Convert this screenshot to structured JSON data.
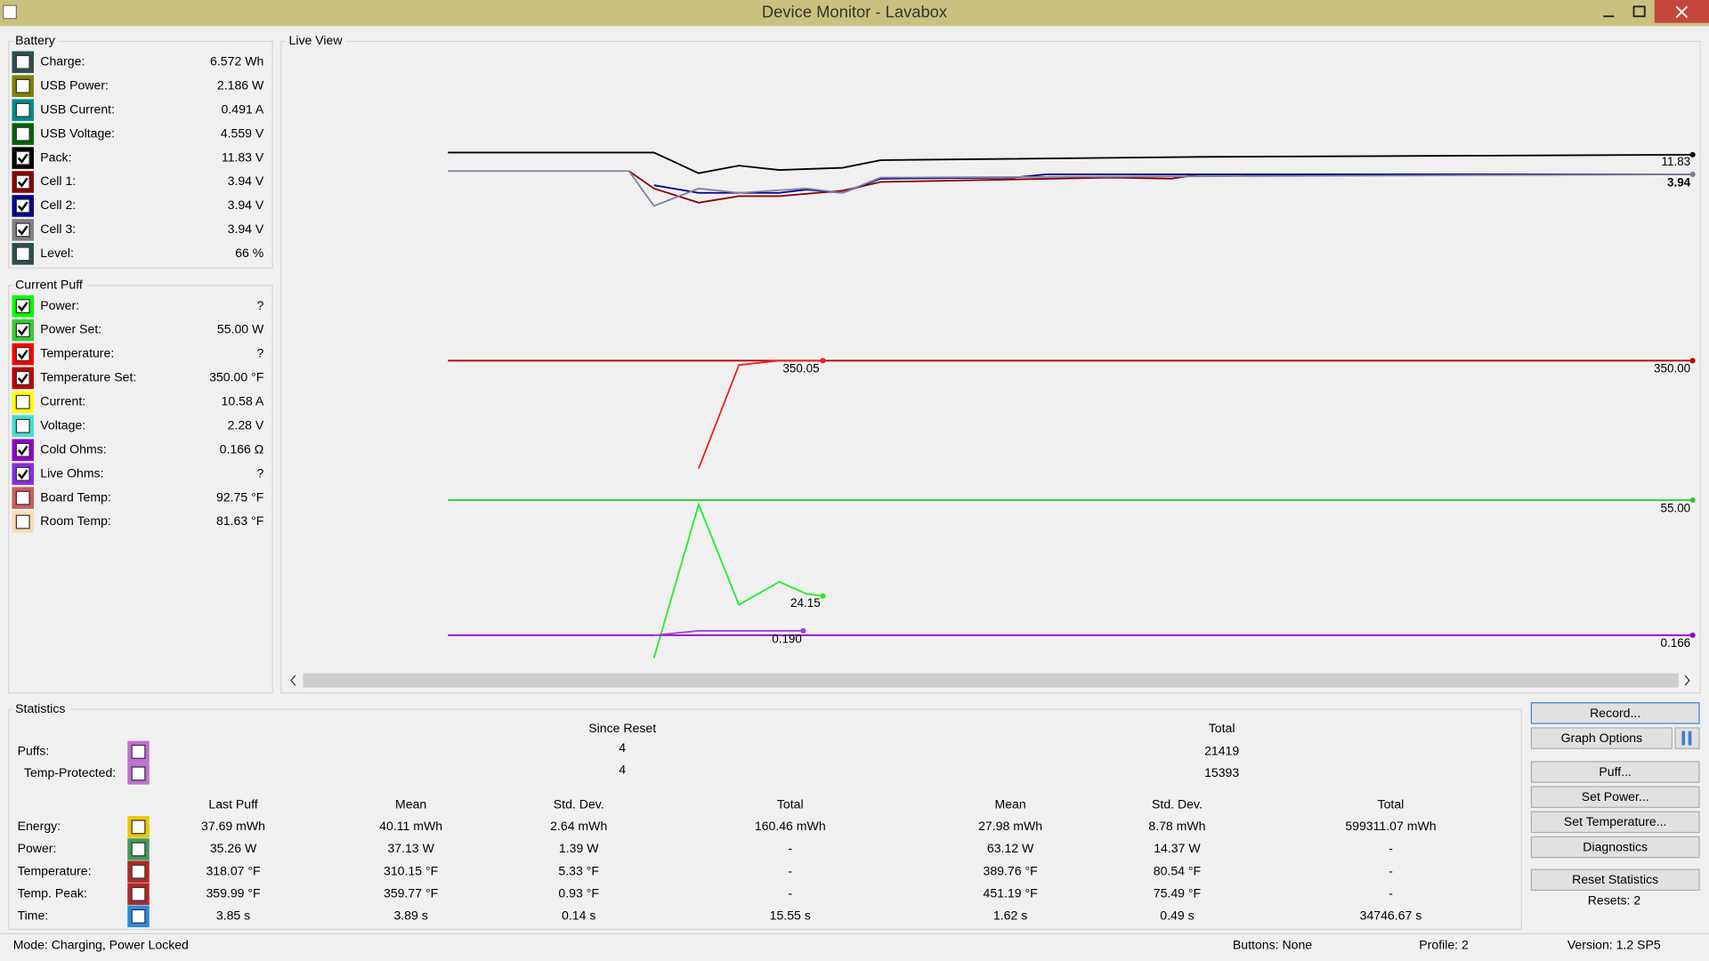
{
  "window": {
    "title": "Device Monitor - Lavabox"
  },
  "battery": {
    "title": "Battery",
    "rows": [
      {
        "label": "Charge:",
        "value": "6.572 Wh",
        "checked": false,
        "color": "#2f4f4f"
      },
      {
        "label": "USB Power:",
        "value": "2.186 W",
        "checked": false,
        "color": "#808000"
      },
      {
        "label": "USB Current:",
        "value": "0.491 A",
        "checked": false,
        "color": "#008b8b"
      },
      {
        "label": "USB Voltage:",
        "value": "4.559 V",
        "checked": false,
        "color": "#006400"
      },
      {
        "label": "Pack:",
        "value": "11.83 V",
        "checked": true,
        "color": "#000000"
      },
      {
        "label": "Cell 1:",
        "value": "3.94 V",
        "checked": true,
        "color": "#8b0000"
      },
      {
        "label": "Cell 2:",
        "value": "3.94 V",
        "checked": true,
        "color": "#00008b"
      },
      {
        "label": "Cell 3:",
        "value": "3.94 V",
        "checked": true,
        "color": "#808080"
      },
      {
        "label": "Level:",
        "value": "66 %",
        "checked": false,
        "color": "#2f4f4f"
      }
    ]
  },
  "current_puff": {
    "title": "Current Puff",
    "rows": [
      {
        "label": "Power:",
        "value": "?",
        "checked": true,
        "color": "#00ff00"
      },
      {
        "label": "Power Set:",
        "value": "55.00 W",
        "checked": true,
        "color": "#32cd32"
      },
      {
        "label": "Temperature:",
        "value": "?",
        "checked": true,
        "color": "#ff0000"
      },
      {
        "label": "Temperature Set:",
        "value": "350.00 °F",
        "checked": true,
        "color": "#c00000"
      },
      {
        "label": "Current:",
        "value": "10.58 A",
        "checked": false,
        "color": "#ffff00"
      },
      {
        "label": "Voltage:",
        "value": "2.28 V",
        "checked": false,
        "color": "#40e0d0"
      },
      {
        "label": "Cold Ohms:",
        "value": "0.166 Ω",
        "checked": true,
        "color": "#9400d3"
      },
      {
        "label": "Live Ohms:",
        "value": "?",
        "checked": true,
        "color": "#8a2be2"
      },
      {
        "label": "Board Temp:",
        "value": "92.75 °F",
        "checked": false,
        "color": "#cd5c5c"
      },
      {
        "label": "Room Temp:",
        "value": "81.63 °F",
        "checked": false,
        "color": "#f5deb3"
      }
    ]
  },
  "live_view": {
    "title": "Live View",
    "labels": [
      "11.83",
      "3.94",
      "350.05",
      "350.00",
      "55.00",
      "24.15",
      "0.190",
      "0.166"
    ]
  },
  "statistics": {
    "title": "Statistics",
    "since_reset": "Since Reset",
    "total": "Total",
    "counts": [
      {
        "label": "Puffs:",
        "color": "#c070d0",
        "since": "4",
        "total": "21419"
      },
      {
        "label": "Temp-Protected:",
        "color": "#c070d0",
        "since": "4",
        "total": "15393"
      }
    ],
    "columns": [
      "Last Puff",
      "Mean",
      "Std. Dev.",
      "Total",
      "Mean",
      "Std. Dev.",
      "Total"
    ],
    "rows": [
      {
        "label": "Energy:",
        "color": "#e8c800",
        "cells": [
          "37.69 mWh",
          "40.11 mWh",
          "2.64 mWh",
          "160.46 mWh",
          "27.98 mWh",
          "8.78 mWh",
          "599311.07 mWh"
        ]
      },
      {
        "label": "Power:",
        "color": "#3c9c5c",
        "cells": [
          "35.26 W",
          "37.13 W",
          "1.39 W",
          "-",
          "63.12 W",
          "14.37 W",
          "-"
        ]
      },
      {
        "label": "Temperature:",
        "color": "#b02828",
        "cells": [
          "318.07 °F",
          "310.15 °F",
          "5.33 °F",
          "-",
          "389.76 °F",
          "80.54 °F",
          "-"
        ]
      },
      {
        "label": "Temp. Peak:",
        "color": "#b02828",
        "cells": [
          "359.99 °F",
          "359.77 °F",
          "0.93 °F",
          "-",
          "451.19 °F",
          "75.49 °F",
          "-"
        ]
      },
      {
        "label": "Time:",
        "color": "#2a8ce0",
        "cells": [
          "3.85 s",
          "3.89 s",
          "0.14 s",
          "15.55 s",
          "1.62 s",
          "0.49 s",
          "34746.67 s"
        ]
      }
    ]
  },
  "buttons": [
    "Record...",
    "Graph Options",
    "Puff...",
    "Set Power...",
    "Set Temperature...",
    "Diagnostics",
    "Reset Statistics"
  ],
  "resets": "Resets: 2",
  "status": [
    "Mode: Charging, Power Locked",
    "Buttons: None",
    "Profile: 2",
    "Version: 1.2 SP5"
  ]
}
